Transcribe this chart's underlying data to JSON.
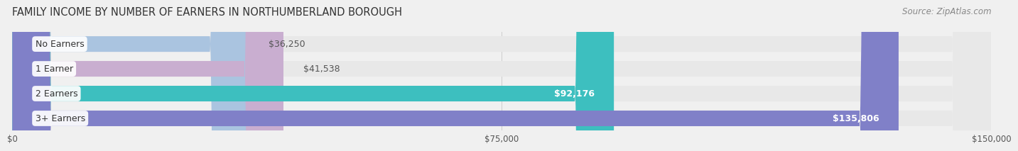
{
  "title": "FAMILY INCOME BY NUMBER OF EARNERS IN NORTHUMBERLAND BOROUGH",
  "source": "Source: ZipAtlas.com",
  "categories": [
    "No Earners",
    "1 Earner",
    "2 Earners",
    "3+ Earners"
  ],
  "values": [
    36250,
    41538,
    92176,
    135806
  ],
  "labels": [
    "$36,250",
    "$41,538",
    "$92,176",
    "$135,806"
  ],
  "bar_colors": [
    "#aac4e0",
    "#c9aed0",
    "#3dbfbf",
    "#8080c8"
  ],
  "bar_label_colors": [
    "#555555",
    "#555555",
    "#ffffff",
    "#ffffff"
  ],
  "xlim": [
    0,
    150000
  ],
  "xticks": [
    0,
    75000,
    150000
  ],
  "xticklabels": [
    "$0",
    "$75,000",
    "$150,000"
  ],
  "bg_color": "#f0f0f0",
  "bar_bg_color": "#e8e8e8",
  "title_fontsize": 10.5,
  "source_fontsize": 8.5,
  "label_fontsize": 9,
  "category_fontsize": 9
}
